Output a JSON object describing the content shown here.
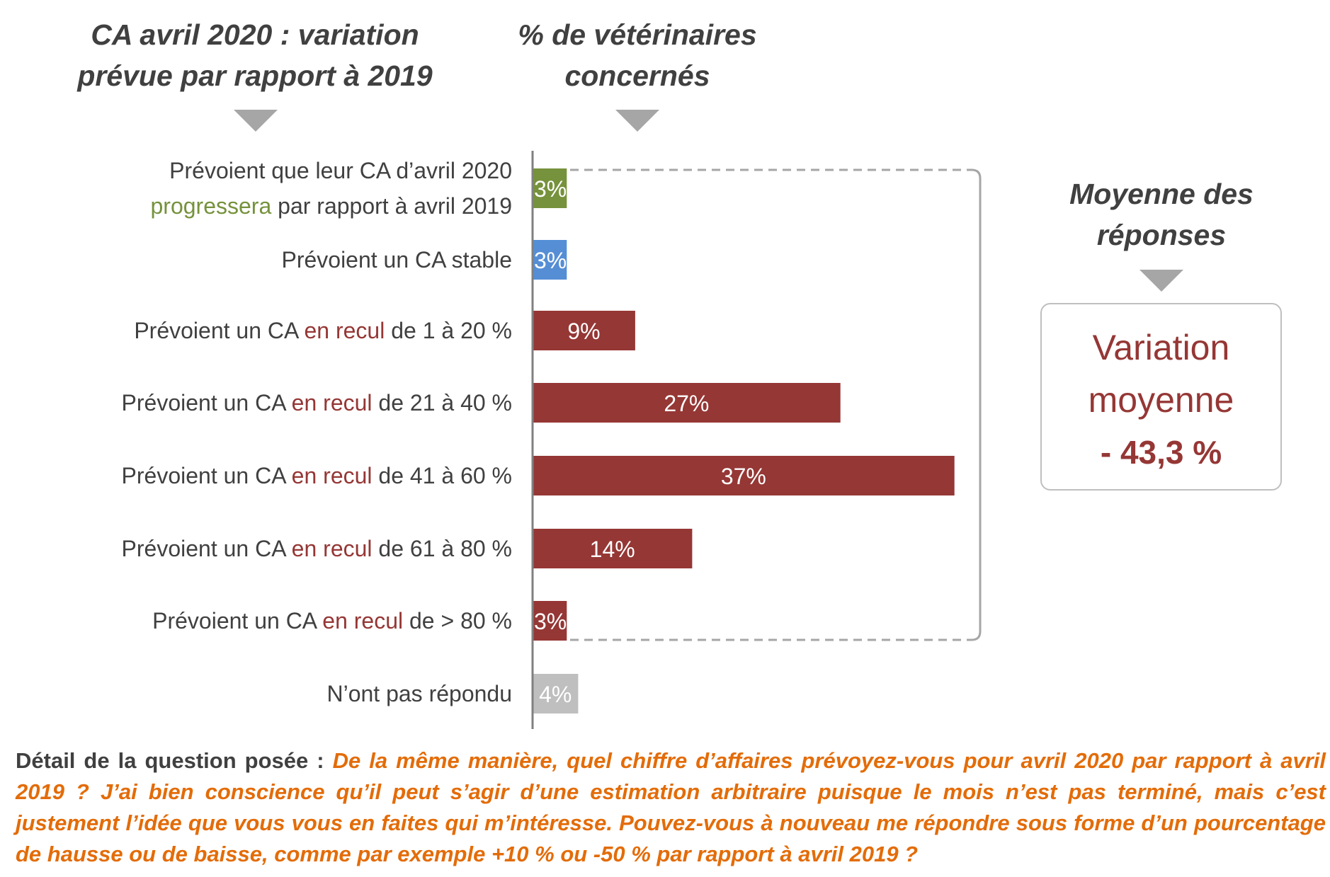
{
  "headers": {
    "left": "CA avril 2020 : variation prévue par rapport à 2019",
    "middle": "% de vétérinaires concernés",
    "right": "Moyenne des réponses"
  },
  "chart_data": {
    "type": "bar",
    "orientation": "horizontal",
    "categories": [
      "Prévoient que leur CA d’avril 2020 progressera par rapport à avril 2019",
      "Prévoient un CA stable",
      "Prévoient un CA en recul de 1 à 20 %",
      "Prévoient un CA en recul de 21 à 40 %",
      "Prévoient un CA en recul de 41 à 60 %",
      "Prévoient un CA en recul de 61 à 80 %",
      "Prévoient un CA en recul de > 80 %",
      "N’ont pas répondu"
    ],
    "values": [
      3,
      3,
      9,
      27,
      37,
      14,
      3,
      4
    ],
    "data_labels": [
      "3%",
      "3%",
      "9%",
      "27%",
      "37%",
      "14%",
      "3%",
      "4%"
    ],
    "bar_colors": [
      "#76923c",
      "#558ed5",
      "#953735",
      "#953735",
      "#953735",
      "#953735",
      "#953735",
      "#bfbfbf"
    ],
    "xlim": [
      0,
      40
    ],
    "grid": false,
    "bracket": "dashed bracket grouping first seven bars"
  },
  "category_labels": [
    {
      "pre": "Prévoient que leur CA d’avril 2020",
      "hl": "progressera",
      "post": "par rapport à avril 2019",
      "hl_color": "green"
    },
    {
      "pre": "Prévoient un CA stable",
      "hl": "",
      "post": ""
    },
    {
      "pre": "Prévoient un CA",
      "hl": "en recul",
      "post": "de 1 à 20 %",
      "hl_color": "red"
    },
    {
      "pre": "Prévoient un CA",
      "hl": "en recul",
      "post": "de 21 à 40 %",
      "hl_color": "red"
    },
    {
      "pre": "Prévoient un CA",
      "hl": "en recul",
      "post": "de 41 à 60 %",
      "hl_color": "red"
    },
    {
      "pre": "Prévoient un CA",
      "hl": "en recul",
      "post": "de 61 à 80 %",
      "hl_color": "red"
    },
    {
      "pre": "Prévoient un CA",
      "hl": "en recul",
      "post": "de > 80 %",
      "hl_color": "red"
    },
    {
      "pre": "N’ont pas répondu",
      "hl": "",
      "post": ""
    }
  ],
  "average_box": {
    "title_line1": "Variation",
    "title_line2": "moyenne",
    "value": "- 43,3 %"
  },
  "footer": {
    "label": "Détail de la question posée :",
    "question": "De la même manière, quel chiffre d’affaires prévoyez-vous pour avril 2020 par rapport à avril 2019 ? J’ai bien conscience qu’il peut s’agir d’une estimation arbitraire puisque le mois n’est pas terminé, mais c’est justement l’idée que vous vous en faites qui m’intéresse. Pouvez-vous à nouveau me répondre sous forme d’un pourcentage de hausse ou de baisse, comme par exemple +10 % ou -50 % par rapport à avril 2019 ?"
  },
  "colors": {
    "green": "#76923c",
    "blue": "#558ed5",
    "red": "#953735",
    "grey": "#bfbfbf",
    "orange": "#e36c09",
    "text": "#404040"
  }
}
